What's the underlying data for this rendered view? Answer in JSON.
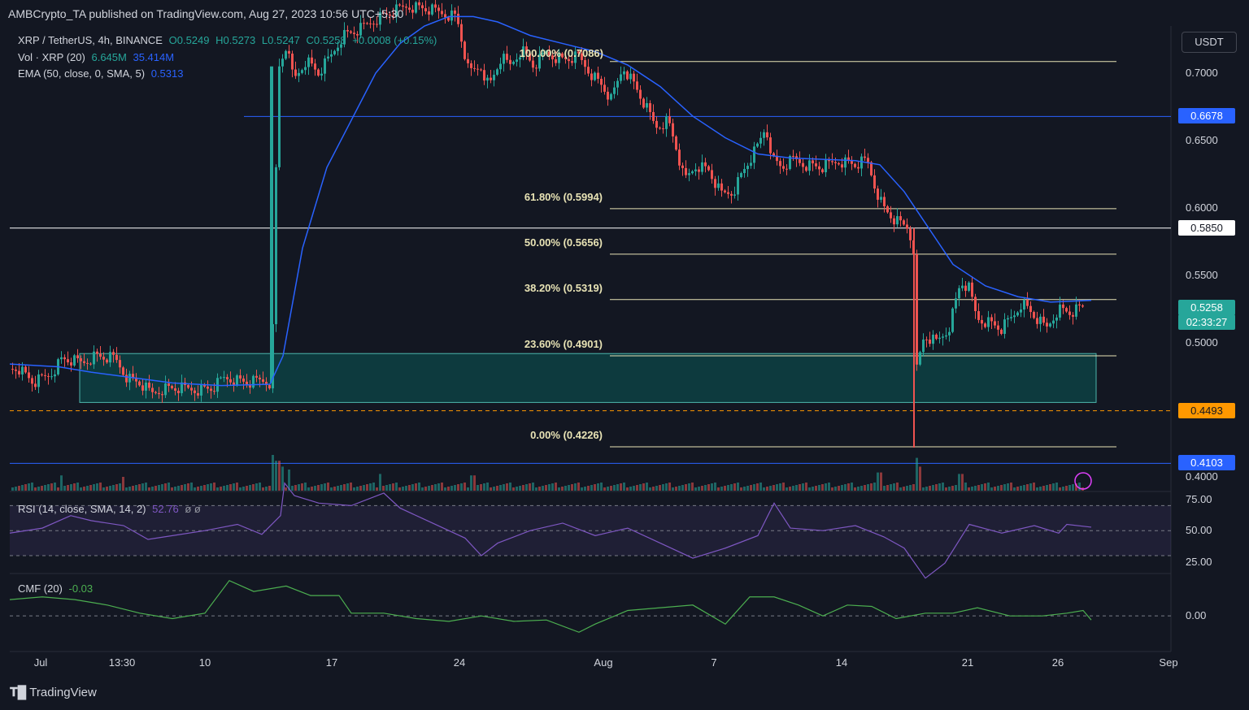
{
  "header": {
    "publisher": "AMBCrypto_TA published on TradingView.com, Aug 27, 2023 10:56 UTC+5:30"
  },
  "legend": {
    "symbol": "XRP / TetherUS, 4h, BINANCE",
    "o": "O0.5249",
    "h": "H0.5273",
    "l": "L0.5247",
    "c": "C0.5258",
    "chg": "+0.0008 (+0.15%)",
    "vol_label": "Vol · XRP (20)",
    "vol_v1": "6.645M",
    "vol_v2": "35.414M",
    "ema_label": "EMA (50, close, 0, SMA, 5)",
    "ema_value": "0.5313",
    "rsi_label": "RSI (14, close, SMA, 14, 2)",
    "rsi_value": "52.76",
    "rsi_extra": "ø ø",
    "cmf_label": "CMF (20)",
    "cmf_value": "-0.03"
  },
  "currency_button": "USDT",
  "footer": {
    "brand": "TradingView"
  },
  "colors": {
    "up": "#26a69a",
    "down": "#ef5350",
    "ema": "#2962ff",
    "fib": "#e8e3b5",
    "rsi": "#7e57c2",
    "cmf": "#4caf50",
    "support": "#ff9800"
  },
  "chart_data": {
    "type": "candlestick",
    "symbol": "XRP / TetherUS",
    "interval": "4h",
    "y_axis": {
      "ticks": [
        "0.7000",
        "0.6500",
        "0.6000",
        "0.5500",
        "0.5000",
        "0.4000"
      ],
      "range": [
        0.39,
        0.735
      ]
    },
    "x_axis": {
      "ticks": [
        "Jul",
        "13:30",
        "10",
        "17",
        "24",
        "Aug",
        "7",
        "14",
        "21",
        "26",
        "Sep"
      ]
    },
    "price_path": [
      [
        0,
        0.478
      ],
      [
        20,
        0.482
      ],
      [
        40,
        0.47
      ],
      [
        60,
        0.476
      ],
      [
        75,
        0.488
      ],
      [
        90,
        0.486
      ],
      [
        100,
        0.485
      ],
      [
        115,
        0.49
      ],
      [
        140,
        0.488
      ],
      [
        155,
        0.474
      ],
      [
        170,
        0.47
      ],
      [
        185,
        0.462
      ],
      [
        200,
        0.466
      ],
      [
        220,
        0.466
      ],
      [
        240,
        0.465
      ],
      [
        260,
        0.466
      ],
      [
        275,
        0.474
      ],
      [
        290,
        0.472
      ],
      [
        305,
        0.47
      ],
      [
        320,
        0.472
      ],
      [
        333,
        0.47
      ],
      [
        336,
        0.59
      ],
      [
        342,
        0.705
      ],
      [
        350,
        0.72
      ],
      [
        360,
        0.695
      ],
      [
        375,
        0.71
      ],
      [
        390,
        0.7
      ],
      [
        405,
        0.712
      ],
      [
        420,
        0.728
      ],
      [
        440,
        0.732
      ],
      [
        460,
        0.74
      ],
      [
        480,
        0.745
      ],
      [
        500,
        0.75
      ],
      [
        520,
        0.748
      ],
      [
        540,
        0.745
      ],
      [
        560,
        0.742
      ],
      [
        575,
        0.7
      ],
      [
        590,
        0.705
      ],
      [
        600,
        0.69
      ],
      [
        615,
        0.712
      ],
      [
        625,
        0.705
      ],
      [
        640,
        0.718
      ],
      [
        655,
        0.705
      ],
      [
        670,
        0.715
      ],
      [
        690,
        0.71
      ],
      [
        710,
        0.712
      ],
      [
        725,
        0.7
      ],
      [
        740,
        0.69
      ],
      [
        750,
        0.68
      ],
      [
        765,
        0.705
      ],
      [
        780,
        0.69
      ],
      [
        795,
        0.672
      ],
      [
        805,
        0.66
      ],
      [
        820,
        0.665
      ],
      [
        830,
        0.645
      ],
      [
        840,
        0.62
      ],
      [
        855,
        0.632
      ],
      [
        870,
        0.628
      ],
      [
        885,
        0.61
      ],
      [
        900,
        0.612
      ],
      [
        915,
        0.63
      ],
      [
        930,
        0.645
      ],
      [
        940,
        0.66
      ],
      [
        950,
        0.635
      ],
      [
        960,
        0.63
      ],
      [
        975,
        0.636
      ],
      [
        990,
        0.632
      ],
      [
        1010,
        0.63
      ],
      [
        1030,
        0.635
      ],
      [
        1050,
        0.632
      ],
      [
        1065,
        0.635
      ],
      [
        1075,
        0.615
      ],
      [
        1085,
        0.6
      ],
      [
        1100,
        0.59
      ],
      [
        1115,
        0.585
      ],
      [
        1122,
        0.57
      ],
      [
        1126,
        0.48
      ],
      [
        1135,
        0.505
      ],
      [
        1150,
        0.5
      ],
      [
        1165,
        0.51
      ],
      [
        1180,
        0.545
      ],
      [
        1190,
        0.54
      ],
      [
        1200,
        0.518
      ],
      [
        1215,
        0.515
      ],
      [
        1230,
        0.51
      ],
      [
        1245,
        0.52
      ],
      [
        1255,
        0.53
      ],
      [
        1270,
        0.52
      ],
      [
        1285,
        0.51
      ],
      [
        1300,
        0.525
      ],
      [
        1315,
        0.522
      ],
      [
        1330,
        0.5258
      ]
    ],
    "ema_path": [
      [
        0,
        0.484
      ],
      [
        60,
        0.482
      ],
      [
        100,
        0.478
      ],
      [
        150,
        0.474
      ],
      [
        200,
        0.47
      ],
      [
        260,
        0.468
      ],
      [
        320,
        0.469
      ],
      [
        336,
        0.49
      ],
      [
        360,
        0.57
      ],
      [
        390,
        0.63
      ],
      [
        420,
        0.665
      ],
      [
        450,
        0.7
      ],
      [
        480,
        0.722
      ],
      [
        510,
        0.735
      ],
      [
        540,
        0.742
      ],
      [
        570,
        0.742
      ],
      [
        600,
        0.738
      ],
      [
        640,
        0.728
      ],
      [
        680,
        0.722
      ],
      [
        720,
        0.716
      ],
      [
        760,
        0.706
      ],
      [
        800,
        0.69
      ],
      [
        840,
        0.668
      ],
      [
        880,
        0.652
      ],
      [
        920,
        0.64
      ],
      [
        960,
        0.637
      ],
      [
        1000,
        0.636
      ],
      [
        1040,
        0.635
      ],
      [
        1070,
        0.632
      ],
      [
        1100,
        0.612
      ],
      [
        1130,
        0.585
      ],
      [
        1160,
        0.558
      ],
      [
        1200,
        0.542
      ],
      [
        1240,
        0.534
      ],
      [
        1280,
        0.53
      ],
      [
        1330,
        0.5313
      ]
    ],
    "volume_spikes": [
      [
        333,
        1.0
      ],
      [
        340,
        0.8
      ],
      [
        345,
        0.6
      ],
      [
        355,
        0.5
      ],
      [
        1125,
        0.9
      ],
      [
        1130,
        0.6
      ],
      [
        75,
        0.3
      ],
      [
        150,
        0.25
      ],
      [
        465,
        0.35
      ],
      [
        580,
        0.3
      ],
      [
        1080,
        0.4
      ],
      [
        1180,
        0.35
      ]
    ],
    "fibonacci": [
      {
        "label": "100.00% (0.7086)",
        "level": 0.7086
      },
      {
        "label": "61.80% (0.5994)",
        "level": 0.5994
      },
      {
        "label": "50.00% (0.5656)",
        "level": 0.5656
      },
      {
        "label": "38.20% (0.5319)",
        "level": 0.5319
      },
      {
        "label": "23.60% (0.4901)",
        "level": 0.4901
      },
      {
        "label": "0.00% (0.4226)",
        "level": 0.4226
      }
    ],
    "horizontal_levels": [
      {
        "value": "0.6678",
        "level": 0.6678,
        "color": "#2962ff"
      },
      {
        "value": "0.5850",
        "level": 0.585,
        "color": "#ffffff"
      },
      {
        "value": "0.4493",
        "level": 0.4493,
        "color": "#ff9800"
      },
      {
        "value": "0.4103",
        "level": 0.4103,
        "color": "#2962ff"
      }
    ],
    "current_price": {
      "value": "0.5258",
      "level": 0.5258,
      "countdown": "02:33:27"
    },
    "demand_zone": {
      "from": 0.4555,
      "to": 0.4918
    },
    "rsi": {
      "ticks": [
        "75.00",
        "50.00",
        "25.00"
      ],
      "range": [
        17,
        80
      ],
      "path": [
        [
          0,
          48
        ],
        [
          40,
          52
        ],
        [
          75,
          62
        ],
        [
          100,
          58
        ],
        [
          140,
          54
        ],
        [
          170,
          43
        ],
        [
          200,
          46
        ],
        [
          240,
          50
        ],
        [
          280,
          55
        ],
        [
          310,
          47
        ],
        [
          333,
          62
        ],
        [
          338,
          88
        ],
        [
          350,
          78
        ],
        [
          380,
          72
        ],
        [
          420,
          70
        ],
        [
          460,
          80
        ],
        [
          480,
          68
        ],
        [
          520,
          56
        ],
        [
          560,
          44
        ],
        [
          580,
          30
        ],
        [
          600,
          40
        ],
        [
          640,
          50
        ],
        [
          680,
          56
        ],
        [
          720,
          46
        ],
        [
          760,
          52
        ],
        [
          800,
          40
        ],
        [
          840,
          28
        ],
        [
          880,
          36
        ],
        [
          920,
          46
        ],
        [
          940,
          72
        ],
        [
          960,
          52
        ],
        [
          1000,
          50
        ],
        [
          1040,
          54
        ],
        [
          1075,
          45
        ],
        [
          1100,
          36
        ],
        [
          1126,
          12
        ],
        [
          1150,
          24
        ],
        [
          1180,
          55
        ],
        [
          1220,
          48
        ],
        [
          1260,
          54
        ],
        [
          1290,
          48
        ],
        [
          1300,
          55
        ],
        [
          1330,
          52.76
        ]
      ]
    },
    "cmf": {
      "ticks": [
        "0.00"
      ],
      "range": [
        -0.25,
        0.3
      ],
      "path": [
        [
          0,
          0.12
        ],
        [
          40,
          0.14
        ],
        [
          80,
          0.12
        ],
        [
          120,
          0.08
        ],
        [
          160,
          0.02
        ],
        [
          200,
          -0.02
        ],
        [
          240,
          0.02
        ],
        [
          270,
          0.26
        ],
        [
          300,
          0.18
        ],
        [
          340,
          0.22
        ],
        [
          370,
          0.15
        ],
        [
          405,
          0.15
        ],
        [
          420,
          0.02
        ],
        [
          460,
          0.02
        ],
        [
          500,
          -0.02
        ],
        [
          540,
          -0.04
        ],
        [
          580,
          0.0
        ],
        [
          620,
          -0.04
        ],
        [
          660,
          -0.03
        ],
        [
          700,
          -0.12
        ],
        [
          720,
          -0.06
        ],
        [
          760,
          0.04
        ],
        [
          800,
          0.06
        ],
        [
          840,
          0.08
        ],
        [
          880,
          -0.06
        ],
        [
          910,
          0.14
        ],
        [
          940,
          0.14
        ],
        [
          970,
          0.08
        ],
        [
          1000,
          0.0
        ],
        [
          1030,
          0.08
        ],
        [
          1060,
          0.07
        ],
        [
          1090,
          -0.02
        ],
        [
          1126,
          0.02
        ],
        [
          1160,
          0.02
        ],
        [
          1190,
          0.06
        ],
        [
          1230,
          0.0
        ],
        [
          1270,
          0.0
        ],
        [
          1300,
          0.02
        ],
        [
          1320,
          0.04
        ],
        [
          1330,
          -0.03
        ]
      ]
    }
  }
}
